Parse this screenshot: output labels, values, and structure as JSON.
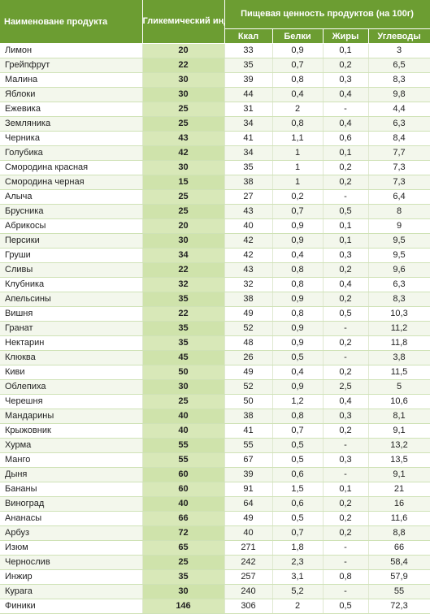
{
  "header": {
    "product": "Наименоване продукта",
    "gi": "Гликемический индекс",
    "nutrition": "Пищевая ценность продуктов (на 100г)",
    "kcal": "Ккал",
    "protein": "Белки",
    "fat": "Жиры",
    "carbs": "Углеводы"
  },
  "rows": [
    [
      "Лимон",
      "20",
      "33",
      "0,9",
      "0,1",
      "3"
    ],
    [
      "Грейпфрут",
      "22",
      "35",
      "0,7",
      "0,2",
      "6,5"
    ],
    [
      "Малина",
      "30",
      "39",
      "0,8",
      "0,3",
      "8,3"
    ],
    [
      "Яблоки",
      "30",
      "44",
      "0,4",
      "0,4",
      "9,8"
    ],
    [
      "Ежевика",
      "25",
      "31",
      "2",
      "-",
      "4,4"
    ],
    [
      "Земляника",
      "25",
      "34",
      "0,8",
      "0,4",
      "6,3"
    ],
    [
      "Черника",
      "43",
      "41",
      "1,1",
      "0,6",
      "8,4"
    ],
    [
      "Голубика",
      "42",
      "34",
      "1",
      "0,1",
      "7,7"
    ],
    [
      "Смородина красная",
      "30",
      "35",
      "1",
      "0,2",
      "7,3"
    ],
    [
      "Смородина черная",
      "15",
      "38",
      "1",
      "0,2",
      "7,3"
    ],
    [
      "Алыча",
      "25",
      "27",
      "0,2",
      "-",
      "6,4"
    ],
    [
      "Брусника",
      "25",
      "43",
      "0,7",
      "0,5",
      "8"
    ],
    [
      "Абрикосы",
      "20",
      "40",
      "0,9",
      "0,1",
      "9"
    ],
    [
      "Персики",
      "30",
      "42",
      "0,9",
      "0,1",
      "9,5"
    ],
    [
      "Груши",
      "34",
      "42",
      "0,4",
      "0,3",
      "9,5"
    ],
    [
      "Сливы",
      "22",
      "43",
      "0,8",
      "0,2",
      "9,6"
    ],
    [
      "Клубника",
      "32",
      "32",
      "0,8",
      "0,4",
      "6,3"
    ],
    [
      "Апельсины",
      "35",
      "38",
      "0,9",
      "0,2",
      "8,3"
    ],
    [
      "Вишня",
      "22",
      "49",
      "0,8",
      "0,5",
      "10,3"
    ],
    [
      "Гранат",
      "35",
      "52",
      "0,9",
      "-",
      "11,2"
    ],
    [
      "Нектарин",
      "35",
      "48",
      "0,9",
      "0,2",
      "11,8"
    ],
    [
      "Клюква",
      "45",
      "26",
      "0,5",
      "-",
      "3,8"
    ],
    [
      "Киви",
      "50",
      "49",
      "0,4",
      "0,2",
      "11,5"
    ],
    [
      "Облепиха",
      "30",
      "52",
      "0,9",
      "2,5",
      "5"
    ],
    [
      "Черешня",
      "25",
      "50",
      "1,2",
      "0,4",
      "10,6"
    ],
    [
      "Мандарины",
      "40",
      "38",
      "0,8",
      "0,3",
      "8,1"
    ],
    [
      "Крыжовник",
      "40",
      "41",
      "0,7",
      "0,2",
      "9,1"
    ],
    [
      "Хурма",
      "55",
      "55",
      "0,5",
      "-",
      "13,2"
    ],
    [
      "Манго",
      "55",
      "67",
      "0,5",
      "0,3",
      "13,5"
    ],
    [
      "Дыня",
      "60",
      "39",
      "0,6",
      "-",
      "9,1"
    ],
    [
      "Бананы",
      "60",
      "91",
      "1,5",
      "0,1",
      "21"
    ],
    [
      "Виноград",
      "40",
      "64",
      "0,6",
      "0,2",
      "16"
    ],
    [
      "Ананасы",
      "66",
      "49",
      "0,5",
      "0,2",
      "11,6"
    ],
    [
      "Арбуз",
      "72",
      "40",
      "0,7",
      "0,2",
      "8,8"
    ],
    [
      "Изюм",
      "65",
      "271",
      "1,8",
      "-",
      "66"
    ],
    [
      "Чернослив",
      "25",
      "242",
      "2,3",
      "-",
      "58,4"
    ],
    [
      "Инжир",
      "35",
      "257",
      "3,1",
      "0,8",
      "57,9"
    ],
    [
      "Курага",
      "30",
      "240",
      "5,2",
      "-",
      "55"
    ],
    [
      "Финики",
      "146",
      "306",
      "2",
      "0,5",
      "72,3"
    ]
  ]
}
